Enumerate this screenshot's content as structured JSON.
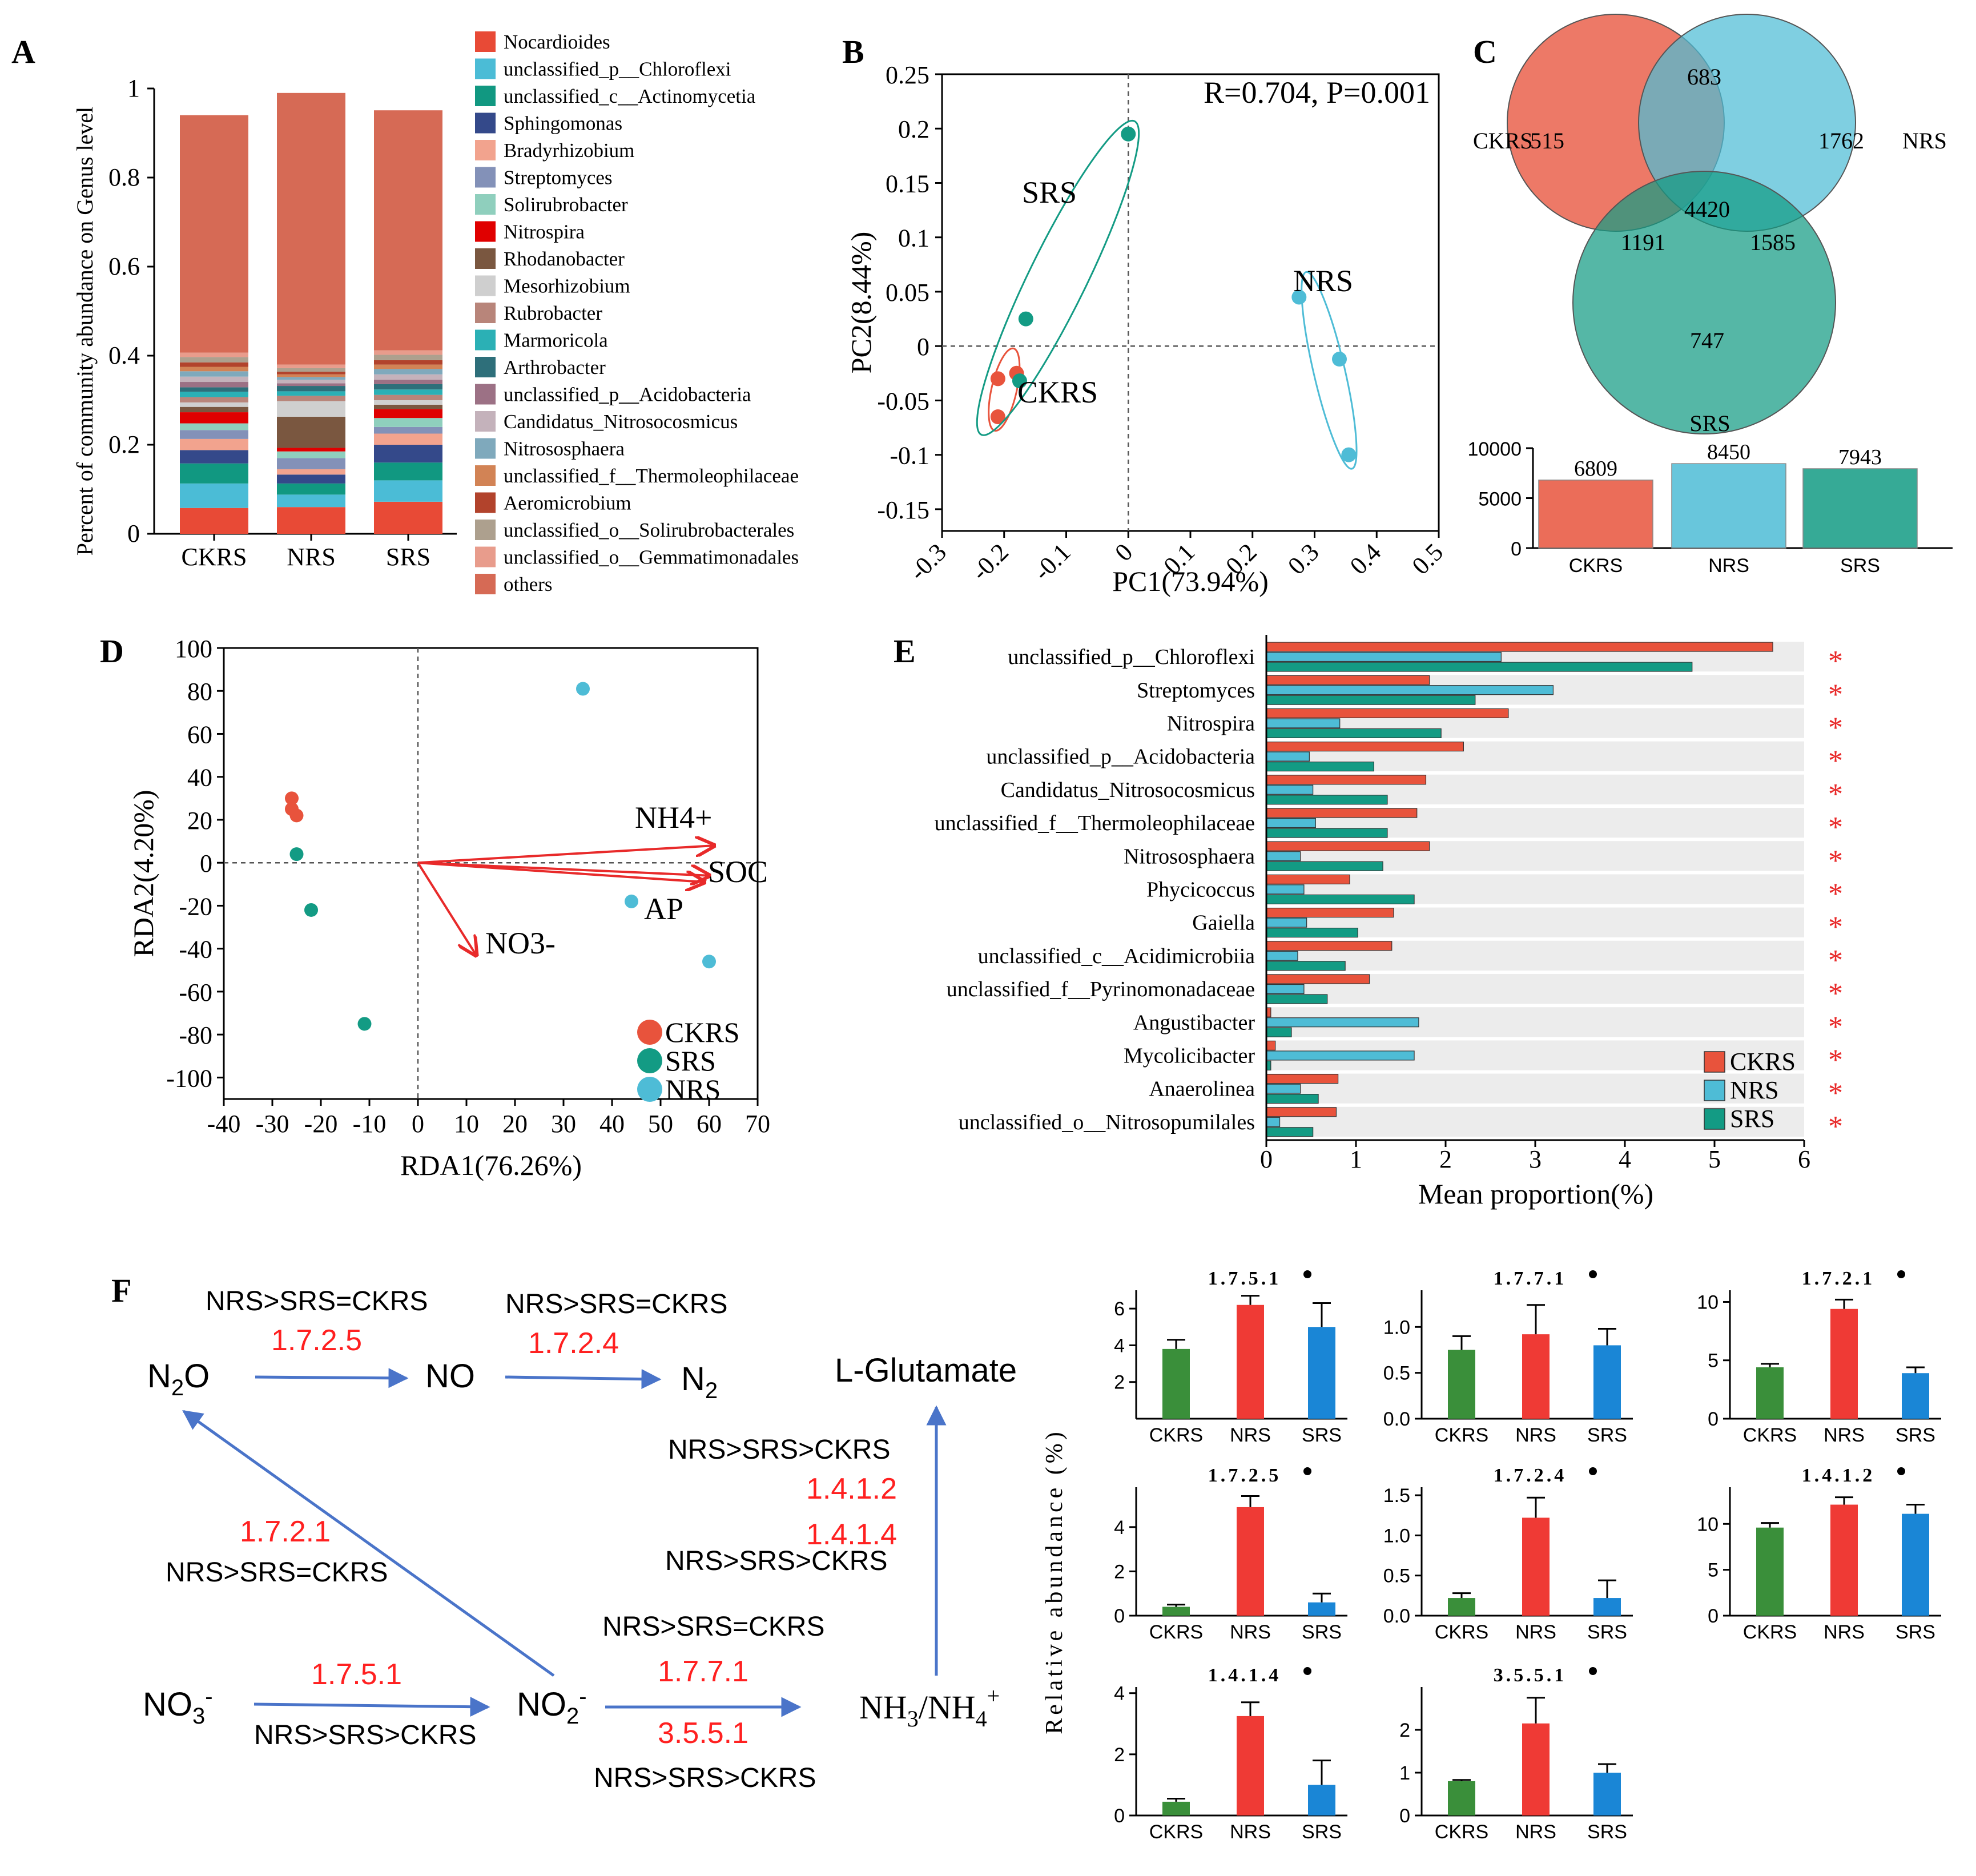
{
  "panel_labels": {
    "A": "A",
    "B": "B",
    "C": "C",
    "D": "D",
    "E": "E",
    "F": "F"
  },
  "colors": {
    "CKRS": "#e8533c",
    "NRS": "#4ebcd6",
    "SRS": "#139b84",
    "ink": "#000000",
    "arrow": "#4a74c9",
    "red": "#e82a2a"
  },
  "chart_data": [
    {
      "id": "A",
      "type": "bar",
      "stacked": true,
      "categories": [
        "CKRS",
        "NRS",
        "SRS"
      ],
      "ylabel": "Percent of community abundance on Genus level",
      "xlabel": "",
      "ylim": [
        0,
        1
      ],
      "yticks": [
        "0",
        "0.2",
        "0.4",
        "0.6",
        "0.8",
        "1"
      ],
      "legend_position": "right",
      "series": [
        {
          "name": "Nocardioides",
          "color": "#e84a36",
          "values": [
            0.058,
            0.06,
            0.072
          ]
        },
        {
          "name": "unclassified_p__Chloroflexi",
          "color": "#4bbcd6",
          "values": [
            0.055,
            0.028,
            0.048
          ]
        },
        {
          "name": "unclassified_c__Actinomycetia",
          "color": "#119881",
          "values": [
            0.045,
            0.025,
            0.04
          ]
        },
        {
          "name": "Sphingomonas",
          "color": "#34498a",
          "values": [
            0.03,
            0.02,
            0.04
          ]
        },
        {
          "name": "Bradyrhizobium",
          "color": "#f2a38e",
          "values": [
            0.025,
            0.012,
            0.025
          ]
        },
        {
          "name": "Streptomyces",
          "color": "#8391b8",
          "values": [
            0.02,
            0.025,
            0.015
          ]
        },
        {
          "name": "Solirubrobacter",
          "color": "#8fcfbd",
          "values": [
            0.015,
            0.015,
            0.02
          ]
        },
        {
          "name": "Nitrospira",
          "color": "#e00000",
          "values": [
            0.025,
            0.008,
            0.02
          ]
        },
        {
          "name": "Rhodanobacter",
          "color": "#7a5740",
          "values": [
            0.012,
            0.07,
            0.01
          ]
        },
        {
          "name": "Mesorhizobium",
          "color": "#cfcfcf",
          "values": [
            0.01,
            0.035,
            0.01
          ]
        },
        {
          "name": "Rubrobacter",
          "color": "#b8857a",
          "values": [
            0.012,
            0.012,
            0.012
          ]
        },
        {
          "name": "Marmoricola",
          "color": "#2bb0b5",
          "values": [
            0.012,
            0.01,
            0.012
          ]
        },
        {
          "name": "Arthrobacter",
          "color": "#2e6f7a",
          "values": [
            0.01,
            0.012,
            0.012
          ]
        },
        {
          "name": "unclassified_p__Acidobacteria",
          "color": "#9c7185",
          "values": [
            0.012,
            0.006,
            0.01
          ]
        },
        {
          "name": "Candidatus_Nitrosocosmicus",
          "color": "#c4b2bb",
          "values": [
            0.012,
            0.008,
            0.012
          ]
        },
        {
          "name": "Nitrososphaera",
          "color": "#7fa9bc",
          "values": [
            0.012,
            0.006,
            0.012
          ]
        },
        {
          "name": "unclassified_f__Thermoleophilaceae",
          "color": "#d28355",
          "values": [
            0.01,
            0.006,
            0.01
          ]
        },
        {
          "name": "Aeromicrobium",
          "color": "#b2432c",
          "values": [
            0.01,
            0.006,
            0.01
          ]
        },
        {
          "name": "unclassified_o__Solirubrobacterales",
          "color": "#ada08e",
          "values": [
            0.012,
            0.008,
            0.012
          ]
        },
        {
          "name": "unclassified_o__Gemmatimonadales",
          "color": "#e89c8c",
          "values": [
            0.01,
            0.008,
            0.01
          ]
        },
        {
          "name": "others",
          "color": "#d66a55",
          "values": [
            0.533,
            0.61,
            0.539
          ]
        }
      ]
    },
    {
      "id": "B",
      "type": "scatter",
      "xlabel": "PC1(73.94%)",
      "ylabel": "PC2(8.44%)",
      "xlim": [
        -0.3,
        0.5
      ],
      "ylim": [
        -0.17,
        0.25
      ],
      "xticks": [
        "-0.3",
        "-0.2",
        "-0.1",
        "0",
        "0.1",
        "0.2",
        "0.3",
        "0.4",
        "0.5"
      ],
      "yticks": [
        "-0.15",
        "-0.1",
        "-0.05",
        "0",
        "0.05",
        "0.1",
        "0.15",
        "0.2",
        "0.25"
      ],
      "annotation": "R=0.704, P=0.001",
      "groups": [
        {
          "name": "CKRS",
          "points": [
            [
              -0.21,
              -0.03
            ],
            [
              -0.18,
              -0.025
            ],
            [
              -0.21,
              -0.065
            ]
          ]
        },
        {
          "name": "SRS",
          "points": [
            [
              -0.175,
              -0.032
            ],
            [
              -0.165,
              0.025
            ],
            [
              0,
              0.195
            ]
          ]
        },
        {
          "name": "NRS",
          "points": [
            [
              0.275,
              0.045
            ],
            [
              0.34,
              -0.012
            ],
            [
              0.355,
              -0.1
            ]
          ]
        }
      ]
    },
    {
      "id": "C",
      "type": "bar",
      "venn": {
        "sets": [
          "CKRS",
          "NRS",
          "SRS"
        ],
        "only_CKRS": "515",
        "only_NRS": "1762",
        "only_SRS": "747",
        "CKRS_NRS": "683",
        "CKRS_SRS": "1191",
        "NRS_SRS": "1585",
        "all": "4420"
      },
      "categories": [
        "CKRS",
        "NRS",
        "SRS"
      ],
      "values": [
        6809,
        8450,
        7943
      ],
      "value_labels": [
        "6809",
        "8450",
        "7943"
      ],
      "ylim": [
        0,
        10000
      ],
      "yticks": [
        "0",
        "5000",
        "10000"
      ]
    },
    {
      "id": "D",
      "type": "scatter",
      "xlabel": "RDA1(76.26%)",
      "ylabel": "RDA2(4.20%)",
      "xlim": [
        -40,
        70
      ],
      "ylim": [
        -110,
        100
      ],
      "xticks": [
        "-40",
        "-30",
        "-20",
        "-10",
        "0",
        "10",
        "20",
        "30",
        "40",
        "50",
        "60",
        "70"
      ],
      "yticks": [
        "-100",
        "-80",
        "-60",
        "-40",
        "-20",
        "0",
        "20",
        "40",
        "60",
        "80",
        "100"
      ],
      "legend_position": "bottom-right",
      "groups": [
        {
          "name": "CKRS",
          "points": [
            [
              -26,
              30
            ],
            [
              -26,
              25
            ],
            [
              -25,
              22
            ]
          ]
        },
        {
          "name": "SRS",
          "points": [
            [
              -25,
              4
            ],
            [
              -22,
              -22
            ],
            [
              -11,
              -75
            ]
          ]
        },
        {
          "name": "NRS",
          "points": [
            [
              34,
              81
            ],
            [
              44,
              -18
            ],
            [
              60,
              -46
            ]
          ]
        }
      ],
      "vectors": [
        {
          "name": "NH4+",
          "end": [
            61,
            8
          ]
        },
        {
          "name": "SOC",
          "end": [
            60,
            -6
          ]
        },
        {
          "name": "AP",
          "end": [
            59,
            -9
          ]
        },
        {
          "name": "NO3-",
          "end": [
            12,
            -43
          ]
        }
      ]
    },
    {
      "id": "E",
      "type": "bar",
      "orientation": "horizontal",
      "xlabel": "Mean proportion(%)",
      "xlim": [
        0,
        6
      ],
      "xticks": [
        "0",
        "1",
        "2",
        "3",
        "4",
        "5",
        "6"
      ],
      "legend_position": "bottom-right",
      "significance": "*",
      "categories": [
        "unclassified_p__Chloroflexi",
        "Streptomyces",
        "Nitrospira",
        "unclassified_p__Acidobacteria",
        "Candidatus_Nitrosocosmicus",
        "unclassified_f__Thermoleophilaceae",
        "Nitrososphaera",
        "Phycicoccus",
        "Gaiella",
        "unclassified_c__Acidimicrobiia",
        "unclassified_f__Pyrinomonadaceae",
        "Angustibacter",
        "Mycolicibacter",
        "Anaerolinea",
        "unclassified_o__Nitrosopumilales"
      ],
      "series": [
        {
          "name": "CKRS",
          "values": [
            5.65,
            1.82,
            2.7,
            2.2,
            1.78,
            1.68,
            1.82,
            0.93,
            1.42,
            1.4,
            1.15,
            0.05,
            0.1,
            0.8,
            0.78
          ]
        },
        {
          "name": "NRS",
          "values": [
            2.62,
            3.2,
            0.82,
            0.48,
            0.52,
            0.55,
            0.38,
            0.42,
            0.45,
            0.35,
            0.42,
            1.7,
            1.65,
            0.38,
            0.15
          ]
        },
        {
          "name": "SRS",
          "values": [
            4.75,
            2.33,
            1.95,
            1.2,
            1.35,
            1.35,
            1.3,
            1.65,
            1.02,
            0.88,
            0.68,
            0.28,
            0.05,
            0.58,
            0.52
          ]
        }
      ]
    },
    {
      "id": "F",
      "type": "bar",
      "ylabel": "Relative abundance (%)",
      "categories": [
        "CKRS",
        "NRS",
        "SRS"
      ],
      "subplots": [
        {
          "title": "1.7.5.1",
          "ylim": [
            0,
            7
          ],
          "yticks": [
            "2",
            "4",
            "6"
          ],
          "values": [
            3.8,
            6.2,
            5.0
          ],
          "errors": [
            0.5,
            0.5,
            1.3
          ]
        },
        {
          "title": "1.7.7.1",
          "ylim": [
            0,
            1.4
          ],
          "yticks": [
            "0.0",
            "0.5",
            "1.0"
          ],
          "values": [
            0.75,
            0.92,
            0.8
          ],
          "errors": [
            0.15,
            0.32,
            0.18
          ]
        },
        {
          "title": "1.7.2.1",
          "ylim": [
            0,
            11
          ],
          "yticks": [
            "0",
            "5",
            "10"
          ],
          "values": [
            4.4,
            9.4,
            3.9
          ],
          "errors": [
            0.3,
            0.8,
            0.5
          ]
        },
        {
          "title": "1.7.2.5",
          "ylim": [
            0,
            5.8
          ],
          "yticks": [
            "0",
            "2",
            "4"
          ],
          "values": [
            0.4,
            4.9,
            0.6
          ],
          "errors": [
            0.1,
            0.5,
            0.4
          ]
        },
        {
          "title": "1.7.2.4",
          "ylim": [
            0,
            1.6
          ],
          "yticks": [
            "0.0",
            "0.5",
            "1.0",
            "1.5"
          ],
          "values": [
            0.22,
            1.22,
            0.22
          ],
          "errors": [
            0.06,
            0.25,
            0.22
          ]
        },
        {
          "title": "1.4.1.2",
          "ylim": [
            0,
            14
          ],
          "yticks": [
            "0",
            "5",
            "10"
          ],
          "values": [
            9.6,
            12.1,
            11.1
          ],
          "errors": [
            0.5,
            0.8,
            1.0
          ]
        },
        {
          "title": "1.4.1.4",
          "ylim": [
            0,
            4.2
          ],
          "yticks": [
            "0",
            "2",
            "4"
          ],
          "values": [
            0.45,
            3.25,
            1.0
          ],
          "errors": [
            0.1,
            0.45,
            0.8
          ]
        },
        {
          "title": "3.5.5.1",
          "ylim": [
            0,
            3
          ],
          "yticks": [
            "0",
            "1",
            "2"
          ],
          "values": [
            0.8,
            2.15,
            1.0
          ],
          "errors": [
            0.03,
            0.6,
            0.2
          ]
        }
      ]
    }
  ],
  "pathway": {
    "nodes": {
      "N2O": "N2O",
      "NO": "NO",
      "N2": "N2",
      "NO3": "NO3-",
      "NO2": "NO2-",
      "NH": "NH3/NH4+",
      "glu": "L-Glutamate"
    },
    "edges": [
      {
        "ec": "1.7.2.5",
        "rel": "NRS>SRS=CKRS"
      },
      {
        "ec": "1.7.2.4",
        "rel": "NRS>SRS=CKRS"
      },
      {
        "ec": "1.7.2.1",
        "rel": "NRS>SRS=CKRS"
      },
      {
        "ec": "1.7.5.1",
        "rel": "NRS>SRS>CKRS"
      },
      {
        "ec": "1.7.7.1",
        "rel": "NRS>SRS=CKRS"
      },
      {
        "ec": "3.5.5.1",
        "rel": "NRS>SRS>CKRS"
      },
      {
        "ec": "1.4.1.2",
        "rel": "NRS>SRS>CKRS"
      },
      {
        "ec": "1.4.1.4",
        "rel": "NRS>SRS>CKRS"
      }
    ]
  }
}
